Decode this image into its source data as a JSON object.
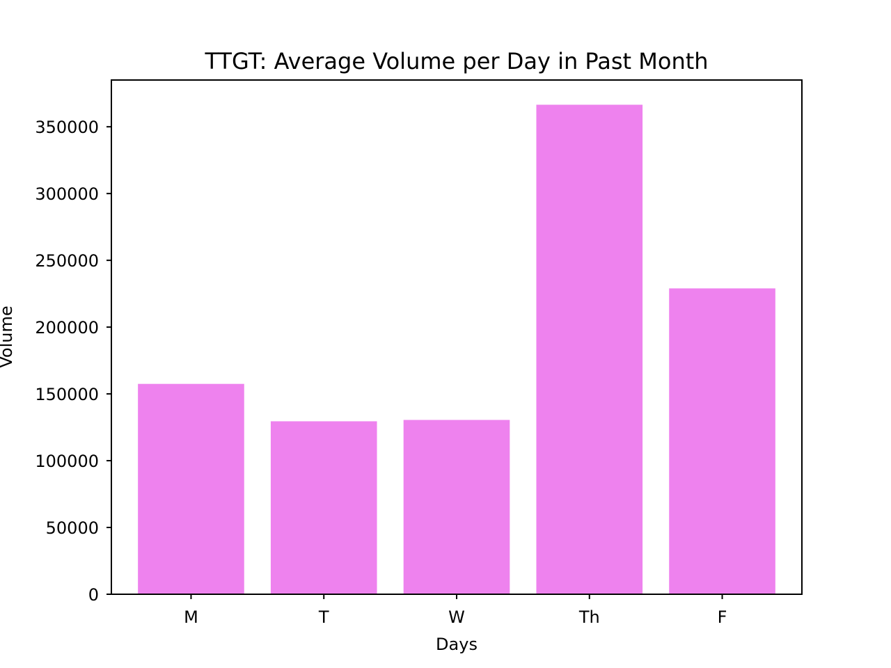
{
  "chart_data": {
    "type": "bar",
    "title": "TTGT: Average Volume per Day in Past Month",
    "xlabel": "Days",
    "ylabel": "Volume",
    "categories": [
      "M",
      "T",
      "W",
      "Th",
      "F"
    ],
    "values": [
      157500,
      129500,
      130500,
      366500,
      229000
    ],
    "ylim": [
      0,
      385000
    ],
    "yticks": [
      0,
      50000,
      100000,
      150000,
      200000,
      250000,
      300000,
      350000
    ],
    "grid": false,
    "legend": "none",
    "bar_color": "#ee82ee"
  }
}
